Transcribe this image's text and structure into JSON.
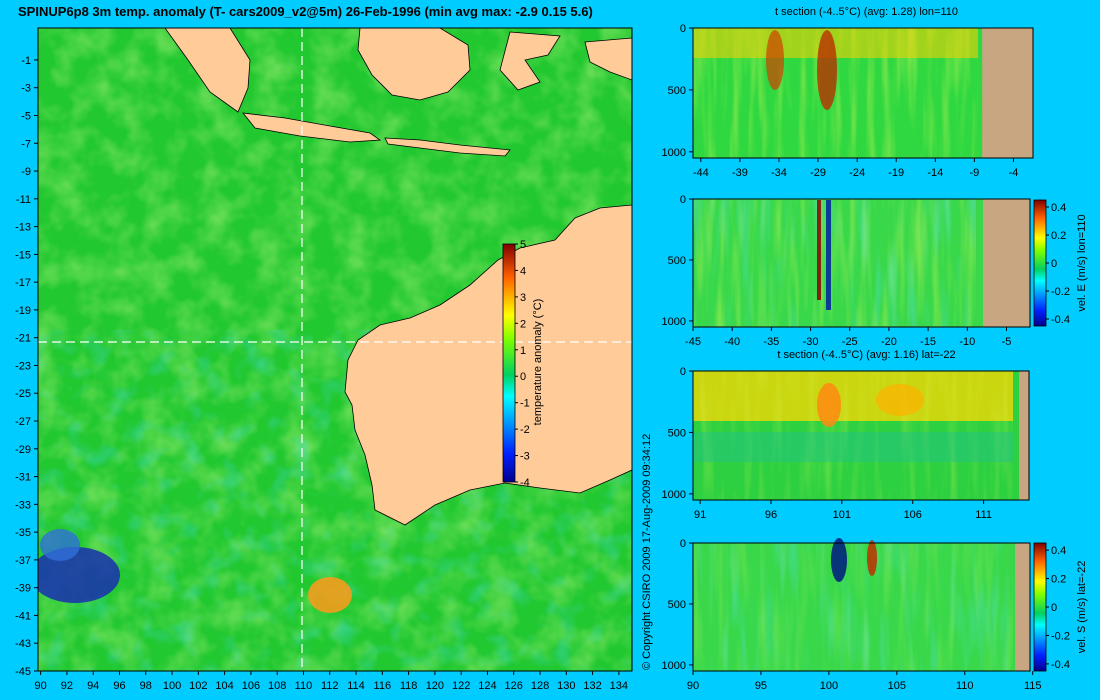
{
  "title": "SPINUP6p8 3m temp. anomaly (T- cars2009_v2@5m) 26-Feb-1996 (min avg max: -2.9 0.15 5.6)",
  "copyright": "© Copyright CSIRO 2009  17-Aug-2009 09:34:12",
  "colors": {
    "background": "#00ccff",
    "land": "#ffcc99",
    "section_land": "#c8a682",
    "crosshair": "#ffffff"
  },
  "chart_data": [
    {
      "type": "heatmap",
      "title": "SPINUP6p8 3m temp. anomaly (T- cars2009_v2@5m) 26-Feb-1996 (min avg max: -2.9 0.15 5.6)",
      "x_ticks": [
        "90",
        "92",
        "94",
        "96",
        "98",
        "100",
        "102",
        "104",
        "106",
        "108",
        "110",
        "112",
        "114",
        "116",
        "118",
        "120",
        "122",
        "124",
        "126",
        "128",
        "130",
        "132",
        "134"
      ],
      "y_ticks": [
        "-1",
        "-3",
        "-5",
        "-7",
        "-9",
        "-11",
        "-13",
        "-15",
        "-17",
        "-19",
        "-21",
        "-23",
        "-25",
        "-27",
        "-29",
        "-31",
        "-33",
        "-35",
        "-37",
        "-39",
        "-41",
        "-43",
        "-45"
      ],
      "xlim": [
        89.8,
        135
      ],
      "ylim": [
        -45,
        1.3
      ],
      "crosshair": {
        "lon": 110,
        "lat": -22
      },
      "colorbar": {
        "label": "temperature anomaly (°C)",
        "ticks": [
          "5",
          "4",
          "3",
          "2",
          "1",
          "0",
          "-1",
          "-2",
          "-3",
          "-4"
        ],
        "range": [
          -4,
          5
        ]
      }
    },
    {
      "type": "heatmap",
      "title": "t section (-4..5°C) (avg: 1.28) lon=110",
      "x_ticks": [
        "-44",
        "-39",
        "-34",
        "-29",
        "-24",
        "-19",
        "-14",
        "-9",
        "-4"
      ],
      "y_ticks": [
        "0",
        "500",
        "1000"
      ],
      "xlim": [
        -45,
        -1.5
      ],
      "ylim": [
        1050,
        0
      ],
      "land_from": -8
    },
    {
      "type": "heatmap",
      "title": "",
      "x_ticks": [
        "-45",
        "-40",
        "-35",
        "-30",
        "-25",
        "-20",
        "-15",
        "-10",
        "-5"
      ],
      "y_ticks": [
        "0",
        "500",
        "1000"
      ],
      "xlim": [
        -45,
        -2
      ],
      "ylim": [
        1050,
        0
      ],
      "land_from": -8,
      "colorbar": {
        "label": "vel. E (m/s) lon=110",
        "ticks": [
          "0.4",
          "0.2",
          "0",
          "-0.2",
          "-0.4"
        ],
        "range": [
          -0.45,
          0.45
        ]
      }
    },
    {
      "type": "heatmap",
      "title": "t section (-4..5°C) (avg: 1.16) lat=-22",
      "x_ticks": [
        "91",
        "96",
        "101",
        "106",
        "111"
      ],
      "y_ticks": [
        "0",
        "500",
        "1000"
      ],
      "xlim": [
        90.5,
        114.2
      ],
      "ylim": [
        1050,
        0
      ],
      "land_from": 113.5
    },
    {
      "type": "heatmap",
      "title": "",
      "x_ticks": [
        "90",
        "95",
        "100",
        "105",
        "110",
        "115"
      ],
      "y_ticks": [
        "0",
        "500",
        "1000"
      ],
      "xlim": [
        90,
        114.8
      ],
      "ylim": [
        1050,
        0
      ],
      "land_from": 113.7,
      "colorbar": {
        "label": "vel. S (m/s) lat=-22",
        "ticks": [
          "0.4",
          "0.2",
          "0",
          "-0.2",
          "-0.4"
        ],
        "range": [
          -0.45,
          0.45
        ]
      }
    }
  ]
}
